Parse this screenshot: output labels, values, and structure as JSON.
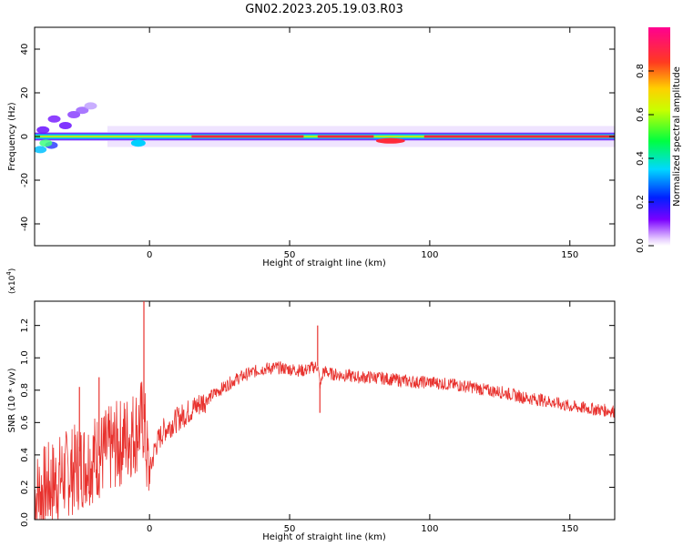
{
  "title": "GN02.2023.205.19.03.R03",
  "colors": {
    "snr_line": "#e8322e",
    "axis": "#000000"
  },
  "chart_data": [
    {
      "type": "heatmap",
      "xlabel": "Height of straight line (km)",
      "ylabel": "Frequency (Hz)",
      "xlim": [
        -41,
        166
      ],
      "ylim": [
        -50,
        50
      ],
      "xticks": [
        "0",
        "50",
        "100",
        "150"
      ],
      "yticks": [
        "40",
        "20",
        "0",
        "-20",
        "-40"
      ],
      "colorbar": {
        "label": "Normalized spectral amplitude",
        "range": [
          0,
          1
        ],
        "ticks": [
          "0.0",
          "0.2",
          "0.4",
          "0.6",
          "0.8"
        ]
      },
      "band": {
        "center_hz": 0,
        "halfwidth_hz": 2
      }
    },
    {
      "type": "line",
      "xlabel": "Height of straight line (km)",
      "ylabel": "SNR (10 * v/v)",
      "yscale_label": "(x10",
      "yscale_exp": "4",
      "yscale_close": ")",
      "xlim": [
        -41,
        166
      ],
      "ylim": [
        0,
        1.35
      ],
      "xticks": [
        "0",
        "50",
        "100",
        "150"
      ],
      "yticks": [
        "0.0",
        "0.2",
        "0.4",
        "0.6",
        "0.8",
        "1.0",
        "1.2"
      ],
      "series": [
        {
          "x": [
            -41,
            -35,
            -30,
            -25,
            -20,
            -15,
            -10,
            -5,
            -2,
            -1,
            0,
            2,
            5,
            10,
            15,
            20,
            25,
            30,
            35,
            40,
            45,
            50,
            55,
            58,
            60,
            61,
            62,
            65,
            70,
            75,
            80,
            85,
            90,
            95,
            100,
            105,
            110,
            115,
            120,
            125,
            130,
            135,
            140,
            145,
            150,
            155,
            160,
            166
          ],
          "y": [
            0.15,
            0.22,
            0.28,
            0.33,
            0.38,
            0.42,
            0.48,
            0.55,
            0.62,
            0.4,
            0.28,
            0.45,
            0.55,
            0.62,
            0.68,
            0.74,
            0.8,
            0.86,
            0.9,
            0.93,
            0.94,
            0.93,
            0.92,
            0.94,
            0.95,
            0.82,
            0.92,
            0.9,
            0.89,
            0.88,
            0.88,
            0.87,
            0.86,
            0.85,
            0.85,
            0.84,
            0.83,
            0.82,
            0.8,
            0.79,
            0.77,
            0.75,
            0.74,
            0.72,
            0.7,
            0.69,
            0.68,
            0.67
          ]
        }
      ],
      "spikes": [
        {
          "x": -2,
          "y": 1.35
        },
        {
          "x": 60,
          "y": 1.2
        },
        {
          "x": 60.8,
          "y": 0.66
        },
        {
          "x": -18,
          "y": 0.88
        },
        {
          "x": -25,
          "y": 0.82
        },
        {
          "x": 0,
          "y": 0.22
        }
      ]
    }
  ]
}
